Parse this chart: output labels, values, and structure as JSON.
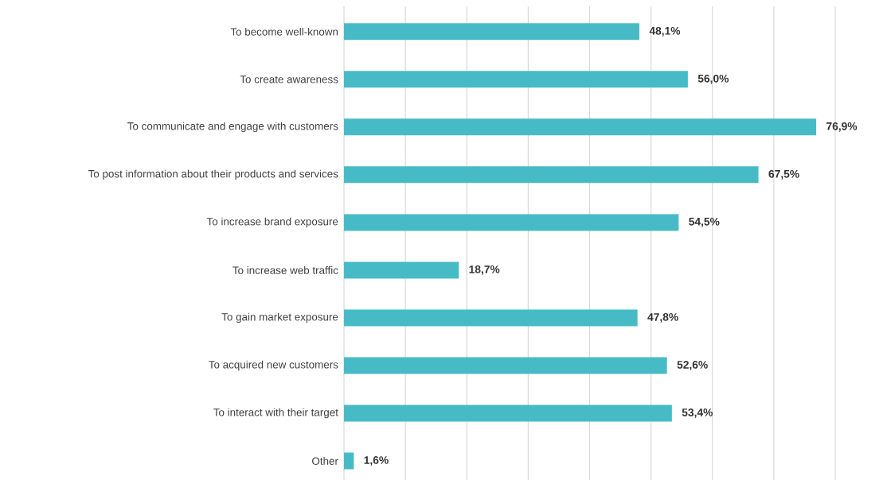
{
  "chart_data": {
    "type": "bar",
    "orientation": "horizontal",
    "categories": [
      "To become well-known",
      "To create awareness",
      "To communicate and engage with customers",
      "To post information about their products and services",
      "To increase brand exposure",
      "To increase web traffic",
      "To gain market exposure",
      "To acquired new customers",
      "To interact with their target",
      "Other"
    ],
    "values": [
      48.1,
      56.0,
      76.9,
      67.5,
      54.5,
      18.7,
      47.8,
      52.6,
      53.4,
      1.6
    ],
    "value_labels": [
      "48,1%",
      "56,0%",
      "76,9%",
      "67,5%",
      "54,5%",
      "18,7%",
      "47,8%",
      "52,6%",
      "53,4%",
      "1,6%"
    ],
    "color": "#46bbc6",
    "xlim": [
      0,
      80
    ],
    "xticks": [
      {
        "value": 0,
        "label": null
      },
      {
        "value": 10,
        "label": null
      },
      {
        "value": 20,
        "label": null
      },
      {
        "value": 30,
        "label": null
      },
      {
        "value": 40,
        "label": null
      },
      {
        "value": 50,
        "label": null
      },
      {
        "value": 60,
        "label": null
      },
      {
        "value": 70,
        "label": null
      },
      {
        "value": 80,
        "label": null
      }
    ],
    "grid": "x",
    "tick_labels": "y"
  }
}
